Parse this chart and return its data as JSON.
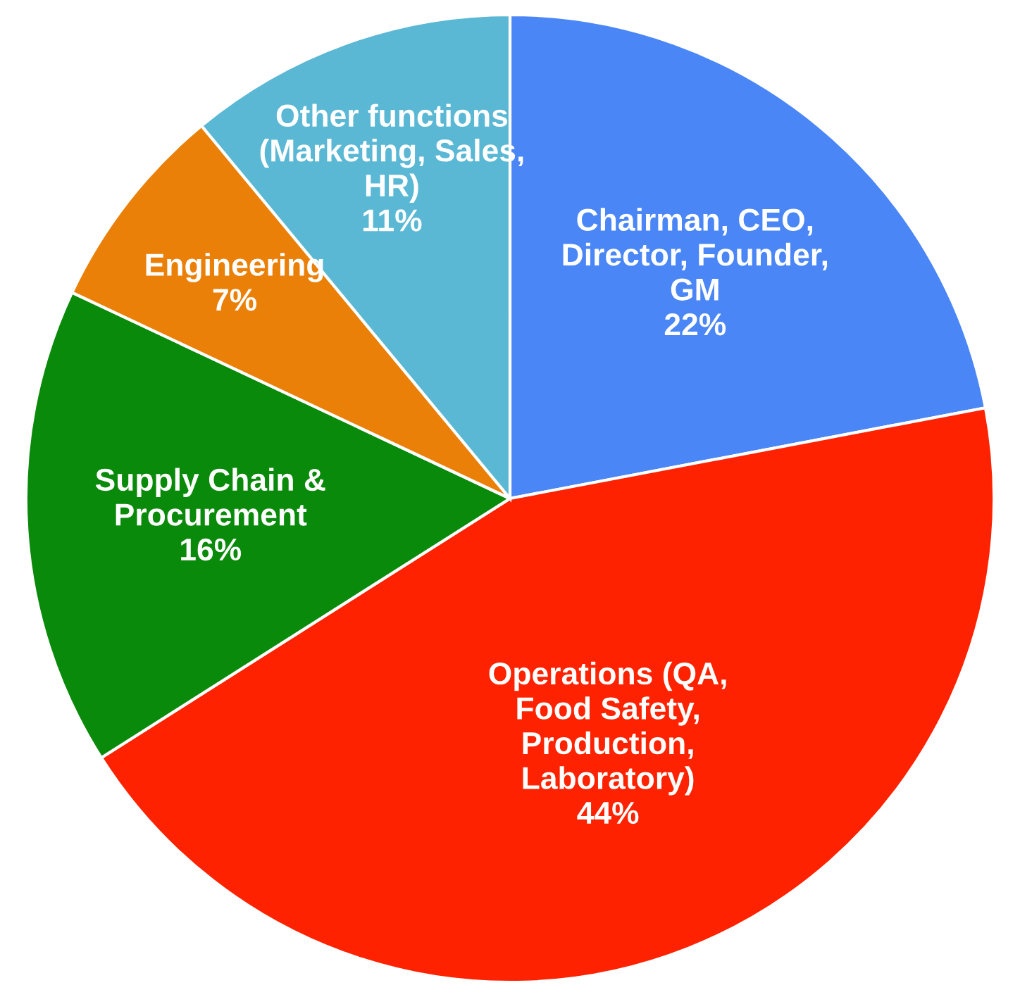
{
  "chart_data": {
    "type": "pie",
    "categories": [
      "Chairman, CEO,\nDirector, Founder,\nGM",
      "Operations (QA,\nFood Safety,\nProduction,\nLaboratory)",
      "Supply Chain &\nProcurement",
      "Engineering",
      "Other functions\n(Marketing, Sales,\nHR)"
    ],
    "values": [
      22,
      44,
      16,
      7,
      11
    ],
    "value_labels": [
      "22%",
      "44%",
      "16%",
      "7%",
      "11%"
    ],
    "colors": [
      "#4a86f5",
      "#ff2200",
      "#0a8a0a",
      "#ea8008",
      "#5ab8d4"
    ]
  }
}
